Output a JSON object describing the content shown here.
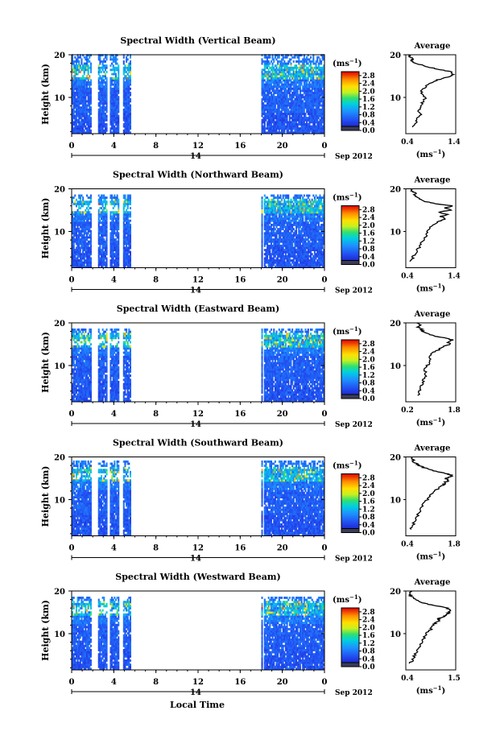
{
  "chart_data": {
    "type": "heatmap",
    "x_label": "Local Time",
    "date_label": "Sep 2012",
    "day_label": "14",
    "y_label": "Height (km)",
    "x_ticks": [
      "0",
      "4",
      "8",
      "12",
      "16",
      "20",
      "0"
    ],
    "xlim": [
      0,
      24
    ],
    "y_ticks": [
      "20",
      "10"
    ],
    "ylim": [
      1.5,
      20
    ],
    "colorbar": {
      "unit": "(ms-1)",
      "ticks": [
        "2.8",
        "2.4",
        "2.0",
        "1.6",
        "1.2",
        "0.8",
        "0.4",
        "0.0"
      ],
      "range": [
        0.0,
        3.0
      ]
    },
    "data_coverage_hours": [
      [
        0,
        5.6
      ],
      [
        18,
        24
      ]
    ],
    "panels": [
      {
        "title": "Spectral Width (Vertical Beam)",
        "avg_title": "Average",
        "avg_unit": "(ms-1)",
        "avg_xticks": [
          "0.4",
          "1.4"
        ],
        "avg_xlim": [
          0.4,
          1.4
        ],
        "avg_yticks": [
          "20",
          "10"
        ],
        "profile_height_km": [
          3,
          4,
          5,
          6,
          7,
          8,
          9,
          10,
          11,
          12,
          13,
          14,
          14.5,
          15,
          15.5,
          16,
          16.5,
          17,
          17.5,
          18,
          18.5,
          19,
          19.5,
          20
        ],
        "profile_value": [
          0.55,
          0.6,
          0.6,
          0.7,
          0.65,
          0.7,
          0.75,
          0.8,
          0.7,
          0.75,
          0.85,
          1.0,
          1.15,
          1.3,
          1.35,
          1.3,
          1.1,
          0.9,
          0.75,
          0.6,
          0.5,
          0.55,
          0.5,
          0.45
        ]
      },
      {
        "title": "Spectral Width (Northward Beam)",
        "avg_title": "Average",
        "avg_unit": "(ms-1)",
        "avg_xticks": [
          "0.4",
          "1.4"
        ],
        "avg_xlim": [
          0.4,
          1.4
        ],
        "avg_yticks": [
          "20",
          "10"
        ],
        "profile_height_km": [
          3,
          4,
          5,
          6,
          7,
          8,
          9,
          10,
          11,
          12,
          12.5,
          13,
          13.5,
          14,
          14.5,
          15,
          15.5,
          16,
          16.5,
          17,
          17.5,
          18,
          18.5,
          19,
          19.5,
          20
        ],
        "profile_value": [
          0.5,
          0.55,
          0.6,
          0.65,
          0.7,
          0.75,
          0.8,
          0.85,
          0.9,
          1.0,
          1.1,
          1.2,
          1.1,
          1.25,
          1.05,
          1.3,
          1.2,
          1.35,
          1.0,
          0.8,
          0.7,
          0.65,
          0.55,
          0.6,
          0.5,
          0.5
        ]
      },
      {
        "title": "Spectral Width (Eastward Beam)",
        "avg_title": "Average",
        "avg_unit": "(ms-1)",
        "avg_xticks": [
          "0.2",
          "1.8"
        ],
        "avg_xlim": [
          0.2,
          1.8
        ],
        "avg_yticks": [
          "20",
          "10"
        ],
        "profile_height_km": [
          3,
          4,
          5,
          6,
          7,
          8,
          9,
          10,
          11,
          12,
          13,
          13.5,
          14,
          14.5,
          15,
          15.5,
          16,
          16.5,
          17,
          17.5,
          18,
          18.5,
          19,
          19.5,
          20
        ],
        "profile_value": [
          0.6,
          0.65,
          0.7,
          0.75,
          0.8,
          0.85,
          0.8,
          0.9,
          1.0,
          0.95,
          1.05,
          1.2,
          1.3,
          1.45,
          1.6,
          1.55,
          1.7,
          1.4,
          1.1,
          0.9,
          0.75,
          0.7,
          0.6,
          0.65,
          0.55
        ]
      },
      {
        "title": "Spectral Width (Southward Beam)",
        "avg_title": "Average",
        "avg_unit": "(ms-1)",
        "avg_xticks": [
          "0.4",
          "1.8"
        ],
        "avg_xlim": [
          0.4,
          1.8
        ],
        "avg_yticks": [
          "20",
          "10"
        ],
        "profile_height_km": [
          3,
          4,
          5,
          6,
          7,
          8,
          9,
          10,
          11,
          12,
          12.5,
          13,
          13.5,
          14,
          14.5,
          15,
          15.5,
          16,
          16.5,
          17,
          17.5,
          18,
          18.5,
          19,
          19.5,
          20
        ],
        "profile_value": [
          0.55,
          0.6,
          0.65,
          0.7,
          0.8,
          0.85,
          0.9,
          1.0,
          1.1,
          1.2,
          1.3,
          1.35,
          1.45,
          1.5,
          1.6,
          1.5,
          1.7,
          1.6,
          1.3,
          1.1,
          0.9,
          0.75,
          0.7,
          0.6,
          0.6,
          0.55
        ]
      },
      {
        "title": "Spectral Width (Westward Beam)",
        "avg_title": "Average",
        "avg_unit": "(ms-1)",
        "avg_xticks": [
          "0.4",
          "1.5"
        ],
        "avg_xlim": [
          0.4,
          1.5
        ],
        "avg_yticks": [
          "20",
          "10"
        ],
        "profile_height_km": [
          3,
          4,
          5,
          6,
          7,
          8,
          9,
          10,
          11,
          12,
          12.5,
          13,
          13.5,
          14,
          14.5,
          15,
          15.5,
          16,
          16.5,
          17,
          17.5,
          18,
          18.5,
          19,
          19.5,
          20
        ],
        "profile_value": [
          0.5,
          0.55,
          0.6,
          0.65,
          0.7,
          0.75,
          0.8,
          0.85,
          0.95,
          1.0,
          1.05,
          1.15,
          1.1,
          1.25,
          1.3,
          1.35,
          1.4,
          1.3,
          1.1,
          0.85,
          0.7,
          0.6,
          0.55,
          0.5,
          0.5,
          0.5
        ]
      }
    ]
  }
}
